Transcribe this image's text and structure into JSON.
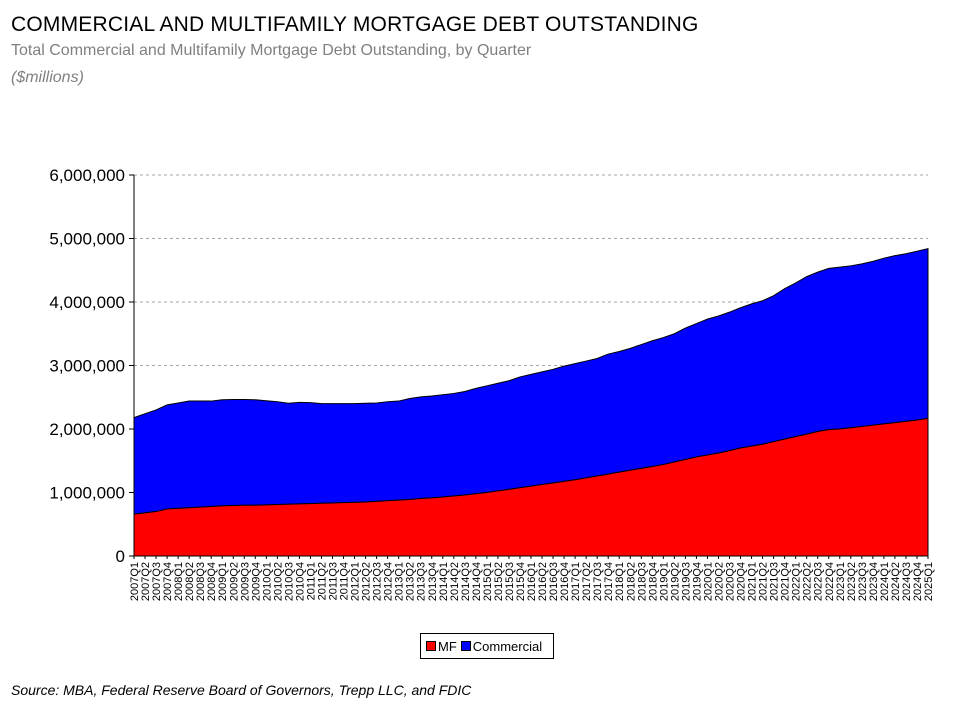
{
  "header": {
    "title": "COMMERCIAL AND MULTIFAMILY MORTGAGE DEBT OUTSTANDING",
    "subtitle": "Total Commercial and Multifamily Mortgage Debt Outstanding, by Quarter",
    "units": "($millions)"
  },
  "footer": {
    "source": "Source:  MBA, Federal Reserve Board of Governors, Trepp LLC, and FDIC"
  },
  "colors": {
    "mf": "#ff0000",
    "commercial": "#0000ff",
    "grid": "#a6a6a6"
  },
  "chart_data": {
    "type": "area",
    "stacked": true,
    "title": "COMMERCIAL AND MULTIFAMILY MORTGAGE DEBT OUTSTANDING",
    "subtitle": "Total Commercial and Multifamily Mortgage Debt Outstanding, by Quarter",
    "ylabel": "($millions)",
    "ylim": [
      0,
      6000000
    ],
    "yticks": [
      0,
      1000000,
      2000000,
      3000000,
      4000000,
      5000000,
      6000000
    ],
    "ytick_labels": [
      "0",
      "1,000,000",
      "2,000,000",
      "3,000,000",
      "4,000,000",
      "5,000,000",
      "6,000,000"
    ],
    "grid": "horizontal dashed",
    "legend": "bottom-center",
    "x": [
      "2007Q1",
      "2007Q2",
      "2007Q3",
      "2007Q4",
      "2008Q1",
      "2008Q2",
      "2008Q3",
      "2008Q4",
      "2009Q1",
      "2009Q2",
      "2009Q3",
      "2009Q4",
      "2010Q1",
      "2010Q2",
      "2010Q3",
      "2010Q4",
      "2011Q1",
      "2011Q2",
      "2011Q3",
      "2011Q4",
      "2012Q1",
      "2012Q2",
      "2012Q3",
      "2012Q4",
      "2013Q1",
      "2013Q2",
      "2013Q3",
      "2013Q4",
      "2014Q1",
      "2014Q2",
      "2014Q3",
      "2014Q4",
      "2015Q1",
      "2015Q2",
      "2015Q3",
      "2015Q4",
      "2016Q1",
      "2016Q2",
      "2016Q3",
      "2016Q4",
      "2017Q1",
      "2017Q2",
      "2017Q3",
      "2017Q4",
      "2018Q1",
      "2018Q2",
      "2018Q3",
      "2018Q4",
      "2019Q1",
      "2019Q2",
      "2019Q3",
      "2019Q4",
      "2020Q1",
      "2020Q2",
      "2020Q3",
      "2020Q4",
      "2021Q1",
      "2021Q2",
      "2021Q3",
      "2021Q4",
      "2022Q1",
      "2022Q2",
      "2022Q3",
      "2022Q4",
      "2023Q1",
      "2023Q2",
      "2023Q3",
      "2023Q4",
      "2024Q1",
      "2024Q2",
      "2024Q3",
      "2024Q4",
      "2025Q1"
    ],
    "series": [
      {
        "name": "MF",
        "color": "#ff0000",
        "values": [
          660000,
          680000,
          700000,
          740000,
          750000,
          760000,
          770000,
          780000,
          790000,
          795000,
          800000,
          800000,
          805000,
          810000,
          815000,
          820000,
          825000,
          830000,
          835000,
          840000,
          845000,
          850000,
          860000,
          870000,
          880000,
          890000,
          905000,
          915000,
          930000,
          945000,
          960000,
          980000,
          1000000,
          1025000,
          1050000,
          1075000,
          1100000,
          1125000,
          1150000,
          1175000,
          1200000,
          1230000,
          1260000,
          1290000,
          1320000,
          1350000,
          1380000,
          1410000,
          1440000,
          1480000,
          1520000,
          1560000,
          1590000,
          1620000,
          1660000,
          1700000,
          1730000,
          1760000,
          1800000,
          1840000,
          1880000,
          1920000,
          1960000,
          1990000,
          2000000,
          2020000,
          2040000,
          2060000,
          2080000,
          2100000,
          2120000,
          2140000,
          2170000
        ]
      },
      {
        "name": "Commercial",
        "color": "#0000ff",
        "values": [
          1520000,
          1560000,
          1600000,
          1640000,
          1660000,
          1680000,
          1670000,
          1660000,
          1670000,
          1670000,
          1665000,
          1660000,
          1640000,
          1620000,
          1590000,
          1600000,
          1590000,
          1570000,
          1565000,
          1560000,
          1555000,
          1555000,
          1550000,
          1560000,
          1560000,
          1590000,
          1600000,
          1605000,
          1610000,
          1615000,
          1630000,
          1660000,
          1680000,
          1695000,
          1710000,
          1745000,
          1760000,
          1775000,
          1790000,
          1815000,
          1830000,
          1840000,
          1850000,
          1890000,
          1900000,
          1920000,
          1950000,
          1980000,
          2000000,
          2020000,
          2070000,
          2100000,
          2140000,
          2160000,
          2180000,
          2210000,
          2240000,
          2260000,
          2300000,
          2370000,
          2420000,
          2480000,
          2510000,
          2540000,
          2550000,
          2550000,
          2560000,
          2580000,
          2610000,
          2630000,
          2640000,
          2660000,
          2670000
        ]
      }
    ]
  }
}
